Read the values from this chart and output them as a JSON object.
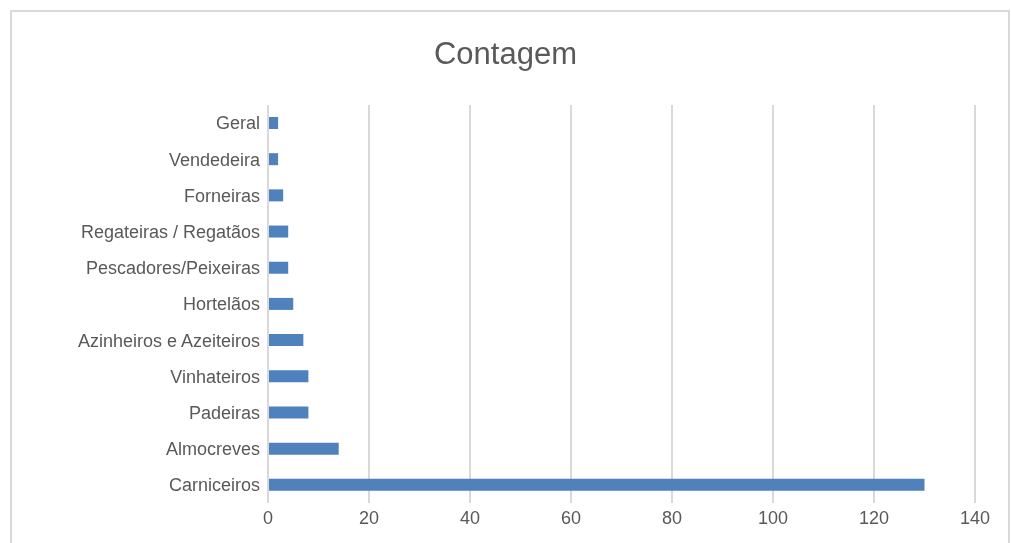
{
  "chart_data": {
    "type": "bar",
    "orientation": "horizontal",
    "title": "Contagem",
    "categories": [
      "Geral",
      "Vendedeira",
      "Forneiras",
      "Regateiras / Regatãos",
      "Pescadores/Peixeiras",
      "Hortelãos",
      "Azinheiros e Azeiteiros",
      "Vinhateiros",
      "Padeiras",
      "Almocreves",
      "Carniceiros"
    ],
    "values": [
      2,
      2,
      3,
      4,
      4,
      5,
      7,
      8,
      8,
      14,
      130
    ],
    "color": "#4f81bd",
    "xlim": [
      0,
      140
    ],
    "xticks": [
      0,
      20,
      40,
      60,
      80,
      100,
      120,
      140
    ],
    "grid": "x",
    "legend": false
  }
}
